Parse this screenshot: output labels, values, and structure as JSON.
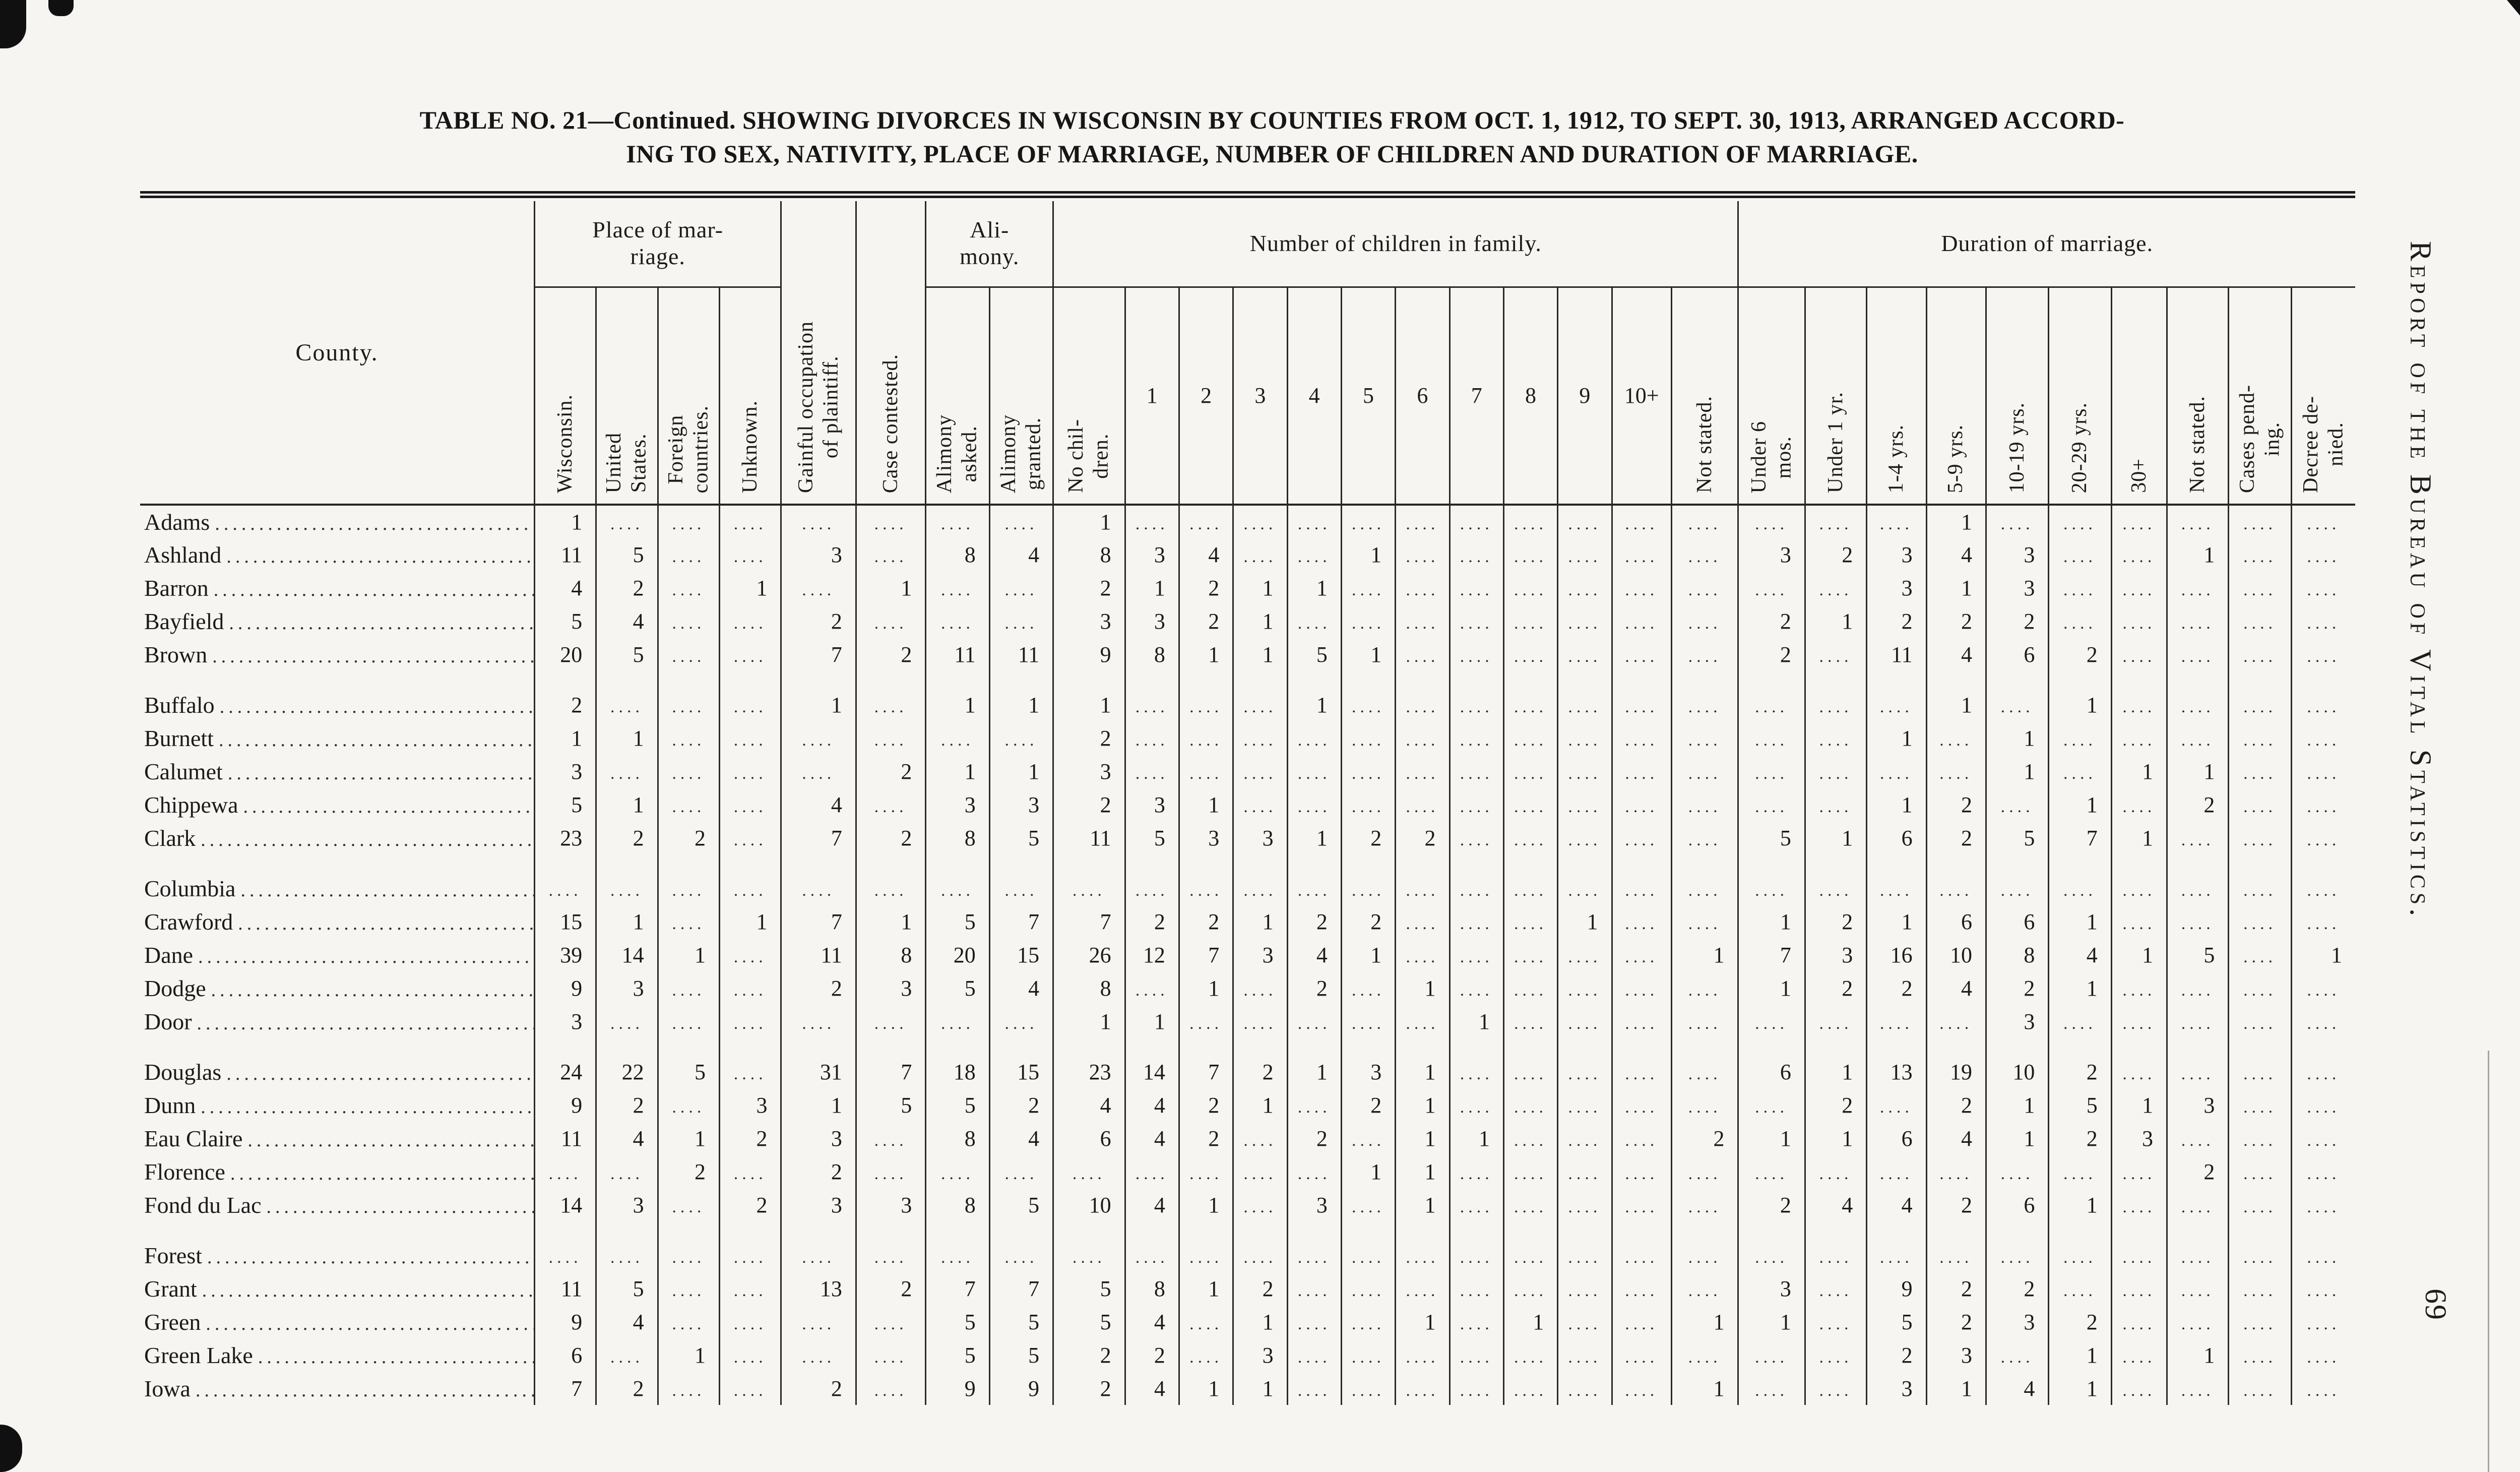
{
  "page": {
    "title": "TABLE NO. 21—Continued.  SHOWING DIVORCES IN WISCONSIN BY COUNTIES  FROM OCT. 1, 1912, TO SEPT. 30, 1913, ARRANGED ACCORD-\nING TO SEX, NATIVITY, PLACE OF MARRIAGE, NUMBER OF CHILDREN AND DURATION OF MARRIAGE.",
    "side_text": "Report of the Bureau of Vital Statistics.",
    "page_number": "69"
  },
  "table": {
    "county_header": "County.",
    "groups": {
      "place_of_marriage": "Place of mar-\nriage.",
      "alimony": "Ali-\nmony.",
      "children": "Number of children in family.",
      "duration": "Duration of marriage."
    },
    "columns": [
      {
        "key": "wisconsin",
        "label": "Wisconsin.",
        "rot": true
      },
      {
        "key": "united_states",
        "label": "United\nStates.",
        "rot": true
      },
      {
        "key": "foreign_countries",
        "label": "Foreign\ncountries.",
        "rot": true
      },
      {
        "key": "unknown",
        "label": "Unknown.",
        "rot": true
      },
      {
        "key": "gainful_occupation",
        "label": "Gainful occupation\nof plaintiff.",
        "rot": true,
        "full_height": true
      },
      {
        "key": "case_contested",
        "label": "Case contested.",
        "rot": true,
        "full_height": true
      },
      {
        "key": "alimony_asked",
        "label": "Alimony\nasked.",
        "rot": true
      },
      {
        "key": "alimony_granted",
        "label": "Alimony\ngranted.",
        "rot": true
      },
      {
        "key": "no_children",
        "label": "No chil-\ndren.",
        "rot": true
      },
      {
        "key": "children_1",
        "label": "1",
        "rot": false
      },
      {
        "key": "children_2",
        "label": "2",
        "rot": false
      },
      {
        "key": "children_3",
        "label": "3",
        "rot": false
      },
      {
        "key": "children_4",
        "label": "4",
        "rot": false
      },
      {
        "key": "children_5",
        "label": "5",
        "rot": false
      },
      {
        "key": "children_6",
        "label": "6",
        "rot": false
      },
      {
        "key": "children_7",
        "label": "7",
        "rot": false
      },
      {
        "key": "children_8",
        "label": "8",
        "rot": false
      },
      {
        "key": "children_9",
        "label": "9",
        "rot": false
      },
      {
        "key": "children_10_plus",
        "label": "10+",
        "rot": false
      },
      {
        "key": "children_not_stated",
        "label": "Not stated.",
        "rot": true
      },
      {
        "key": "under_6_mos",
        "label": "Under 6\nmos.",
        "rot": true
      },
      {
        "key": "under_1_yr",
        "label": "Under 1 yr.",
        "rot": true
      },
      {
        "key": "yrs_1_4",
        "label": "1-4 yrs.",
        "rot": true
      },
      {
        "key": "yrs_5_9",
        "label": "5-9 yrs.",
        "rot": true
      },
      {
        "key": "yrs_10_19",
        "label": "10-19 yrs.",
        "rot": true
      },
      {
        "key": "yrs_20_29",
        "label": "20-29 yrs.",
        "rot": true
      },
      {
        "key": "yrs_30_plus",
        "label": "30+",
        "rot": true
      },
      {
        "key": "duration_not_stated",
        "label": "Not stated.",
        "rot": true
      },
      {
        "key": "cases_pending",
        "label": "Cases pend-\ning.",
        "rot": true
      },
      {
        "key": "decree_denied",
        "label": "Decree de-\nnied.",
        "rot": true
      }
    ],
    "row_groups": [
      [
        {
          "county": "Adams",
          "values": [
            "1",
            "",
            "",
            "",
            "",
            "",
            "",
            "",
            "1",
            "",
            "",
            "",
            "",
            "",
            "",
            "",
            "",
            "",
            "",
            "",
            "",
            "",
            "",
            "1",
            "",
            "",
            "",
            "",
            "",
            ""
          ]
        },
        {
          "county": "Ashland",
          "values": [
            "11",
            "5",
            "",
            "",
            "3",
            "",
            "8",
            "4",
            "8",
            "3",
            "4",
            "",
            "",
            "1",
            "",
            "",
            "",
            "",
            "",
            "",
            "3",
            "2",
            "3",
            "4",
            "3",
            "",
            "",
            "1",
            "",
            ""
          ]
        },
        {
          "county": "Barron",
          "values": [
            "4",
            "2",
            "",
            "1",
            "",
            "1",
            "",
            "",
            "2",
            "1",
            "2",
            "1",
            "1",
            "",
            "",
            "",
            "",
            "",
            "",
            "",
            "",
            "",
            "3",
            "1",
            "3",
            "",
            "",
            "",
            "",
            ""
          ]
        },
        {
          "county": "Bayfield",
          "values": [
            "5",
            "4",
            "",
            "",
            "2",
            "",
            "",
            "",
            "3",
            "3",
            "2",
            "1",
            "",
            "",
            "",
            "",
            "",
            "",
            "",
            "",
            "2",
            "1",
            "2",
            "2",
            "2",
            "",
            "",
            "",
            "",
            ""
          ]
        },
        {
          "county": "Brown",
          "values": [
            "20",
            "5",
            "",
            "",
            "7",
            "2",
            "11",
            "11",
            "9",
            "8",
            "1",
            "1",
            "5",
            "1",
            "",
            "",
            "",
            "",
            "",
            "",
            "2",
            "",
            "11",
            "4",
            "6",
            "2",
            "",
            "",
            "",
            ""
          ]
        }
      ],
      [
        {
          "county": "Buffalo",
          "values": [
            "2",
            "",
            "",
            "",
            "1",
            "",
            "1",
            "1",
            "1",
            "",
            "",
            "",
            "1",
            "",
            "",
            "",
            "",
            "",
            "",
            "",
            "",
            "",
            "",
            "1",
            "",
            "1",
            "",
            "",
            "",
            ""
          ]
        },
        {
          "county": "Burnett",
          "values": [
            "1",
            "1",
            "",
            "",
            "",
            "",
            "",
            "",
            "2",
            "",
            "",
            "",
            "",
            "",
            "",
            "",
            "",
            "",
            "",
            "",
            "",
            "",
            "1",
            "",
            "1",
            "",
            "",
            "",
            "",
            ""
          ]
        },
        {
          "county": "Calumet",
          "values": [
            "3",
            "",
            "",
            "",
            "",
            "2",
            "1",
            "1",
            "3",
            "",
            "",
            "",
            "",
            "",
            "",
            "",
            "",
            "",
            "",
            "",
            "",
            "",
            "",
            "",
            "1",
            "",
            "1",
            "1",
            "",
            ""
          ]
        },
        {
          "county": "Chippewa",
          "values": [
            "5",
            "1",
            "",
            "",
            "4",
            "",
            "3",
            "3",
            "2",
            "3",
            "1",
            "",
            "",
            "",
            "",
            "",
            "",
            "",
            "",
            "",
            "",
            "",
            "1",
            "2",
            "",
            "1",
            "",
            "2",
            "",
            ""
          ]
        },
        {
          "county": "Clark",
          "values": [
            "23",
            "2",
            "2",
            "",
            "7",
            "2",
            "8",
            "5",
            "11",
            "5",
            "3",
            "3",
            "1",
            "2",
            "2",
            "",
            "",
            "",
            "",
            "",
            "5",
            "1",
            "6",
            "2",
            "5",
            "7",
            "1",
            "",
            "",
            ""
          ]
        }
      ],
      [
        {
          "county": "Columbia",
          "values": [
            "",
            "",
            "",
            "",
            "",
            "",
            "",
            "",
            "",
            "",
            "",
            "",
            "",
            "",
            "",
            "",
            "",
            "",
            "",
            "",
            "",
            "",
            "",
            "",
            "",
            "",
            "",
            "",
            "",
            ""
          ]
        },
        {
          "county": "Crawford",
          "values": [
            "15",
            "1",
            "",
            "1",
            "7",
            "1",
            "5",
            "7",
            "7",
            "2",
            "2",
            "1",
            "2",
            "2",
            "",
            "",
            "",
            "1",
            "",
            "",
            "1",
            "2",
            "1",
            "6",
            "6",
            "1",
            "",
            "",
            "",
            ""
          ]
        },
        {
          "county": "Dane",
          "values": [
            "39",
            "14",
            "1",
            "",
            "11",
            "8",
            "20",
            "15",
            "26",
            "12",
            "7",
            "3",
            "4",
            "1",
            "",
            "",
            "",
            "",
            "",
            "1",
            "7",
            "3",
            "16",
            "10",
            "8",
            "4",
            "1",
            "5",
            "",
            "1"
          ]
        },
        {
          "county": "Dodge",
          "values": [
            "9",
            "3",
            "",
            "",
            "2",
            "3",
            "5",
            "4",
            "8",
            "",
            "1",
            "",
            "2",
            "",
            "1",
            "",
            "",
            "",
            "",
            "",
            "1",
            "2",
            "2",
            "4",
            "2",
            "1",
            "",
            "",
            "",
            ""
          ]
        },
        {
          "county": "Door",
          "values": [
            "3",
            "",
            "",
            "",
            "",
            "",
            "",
            "",
            "1",
            "1",
            "",
            "",
            "",
            "",
            "",
            "1",
            "",
            "",
            "",
            "",
            "",
            "",
            "",
            "",
            "3",
            "",
            "",
            "",
            "",
            ""
          ]
        }
      ],
      [
        {
          "county": "Douglas",
          "values": [
            "24",
            "22",
            "5",
            "",
            "31",
            "7",
            "18",
            "15",
            "23",
            "14",
            "7",
            "2",
            "1",
            "3",
            "1",
            "",
            "",
            "",
            "",
            "",
            "6",
            "1",
            "13",
            "19",
            "10",
            "2",
            "",
            "",
            "",
            ""
          ]
        },
        {
          "county": "Dunn",
          "values": [
            "9",
            "2",
            "",
            "3",
            "1",
            "5",
            "5",
            "2",
            "4",
            "4",
            "2",
            "1",
            "",
            "2",
            "1",
            "",
            "",
            "",
            "",
            "",
            "",
            "2",
            "",
            "2",
            "1",
            "5",
            "1",
            "3",
            "",
            ""
          ]
        },
        {
          "county": "Eau Claire",
          "values": [
            "11",
            "4",
            "1",
            "2",
            "3",
            "",
            "8",
            "4",
            "6",
            "4",
            "2",
            "",
            "2",
            "",
            "1",
            "1",
            "",
            "",
            "",
            "2",
            "1",
            "1",
            "6",
            "4",
            "1",
            "2",
            "3",
            "",
            "",
            ""
          ]
        },
        {
          "county": "Florence",
          "values": [
            "",
            "",
            "2",
            "",
            "2",
            "",
            "",
            "",
            "",
            "",
            "",
            "",
            "",
            "1",
            "1",
            "",
            "",
            "",
            "",
            "",
            "",
            "",
            "",
            "",
            "",
            "",
            "",
            "2",
            "",
            ""
          ]
        },
        {
          "county": "Fond du Lac",
          "values": [
            "14",
            "3",
            "",
            "2",
            "3",
            "3",
            "8",
            "5",
            "10",
            "4",
            "1",
            "",
            "3",
            "",
            "1",
            "",
            "",
            "",
            "",
            "",
            "2",
            "4",
            "4",
            "2",
            "6",
            "1",
            "",
            "",
            "",
            ""
          ]
        }
      ],
      [
        {
          "county": "Forest",
          "values": [
            "",
            "",
            "",
            "",
            "",
            "",
            "",
            "",
            "",
            "",
            "",
            "",
            "",
            "",
            "",
            "",
            "",
            "",
            "",
            "",
            "",
            "",
            "",
            "",
            "",
            "",
            "",
            "",
            "",
            ""
          ]
        },
        {
          "county": "Grant",
          "values": [
            "11",
            "5",
            "",
            "",
            "13",
            "2",
            "7",
            "7",
            "5",
            "8",
            "1",
            "2",
            "",
            "",
            "",
            "",
            "",
            "",
            "",
            "",
            "3",
            "",
            "9",
            "2",
            "2",
            "",
            "",
            "",
            "",
            ""
          ]
        },
        {
          "county": "Green",
          "values": [
            "9",
            "4",
            "",
            "",
            "",
            "",
            "5",
            "5",
            "5",
            "4",
            "",
            "1",
            "",
            "",
            "1",
            "",
            "1",
            "",
            "",
            "1",
            "1",
            "",
            "5",
            "2",
            "3",
            "2",
            "",
            "",
            "",
            ""
          ]
        },
        {
          "county": "Green Lake",
          "values": [
            "6",
            "",
            "1",
            "",
            "",
            "",
            "5",
            "5",
            "2",
            "2",
            "",
            "3",
            "",
            "",
            "",
            "",
            "",
            "",
            "",
            "",
            "",
            "",
            "2",
            "3",
            "",
            "1",
            "",
            "1",
            "",
            ""
          ]
        },
        {
          "county": "Iowa",
          "values": [
            "7",
            "2",
            "",
            "",
            "2",
            "",
            "9",
            "9",
            "2",
            "4",
            "1",
            "1",
            "",
            "",
            "",
            "",
            "",
            "",
            "",
            "1",
            "",
            "",
            "3",
            "1",
            "4",
            "1",
            "",
            "",
            "",
            ""
          ]
        }
      ]
    ]
  }
}
